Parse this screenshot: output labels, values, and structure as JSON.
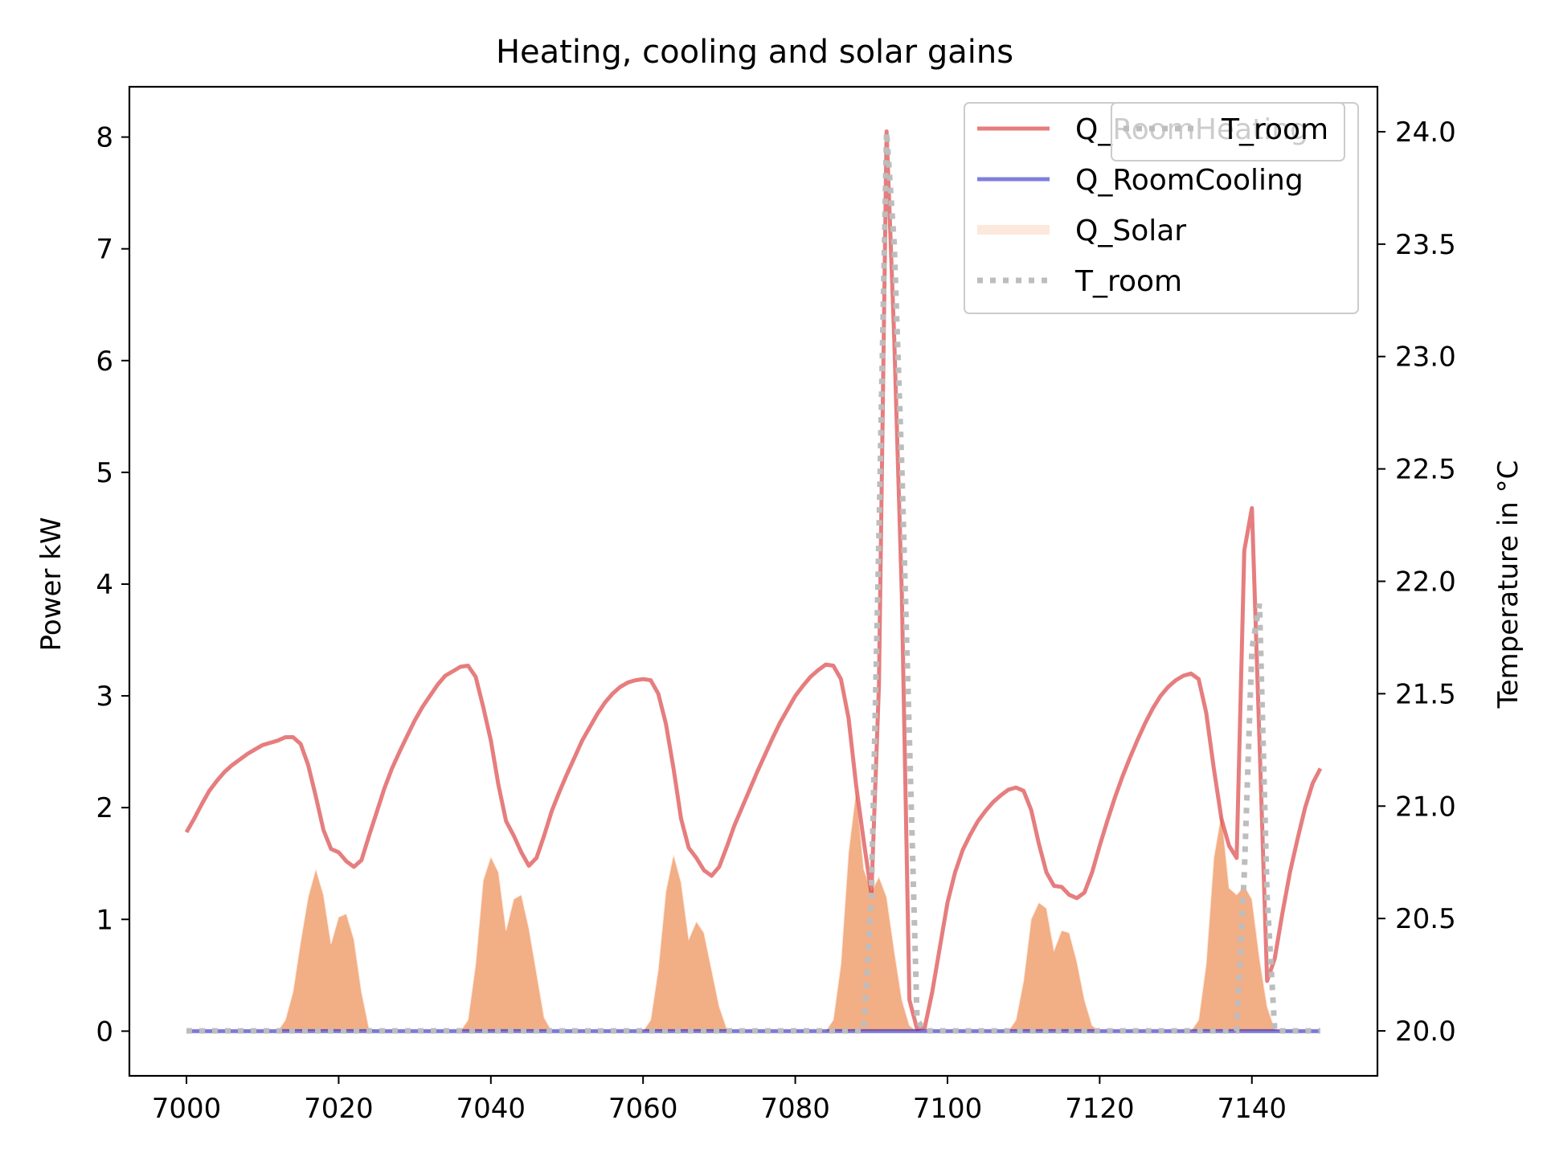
{
  "chart_data": {
    "type": "line",
    "title": "Heating, cooling and solar gains",
    "xlabel": "",
    "ylabel": "Power kW",
    "y2label": "Temperature in °C",
    "xlim": [
      6992.5,
      7156.5
    ],
    "ylim": [
      -0.4,
      8.45
    ],
    "y2lim": [
      19.8,
      24.2
    ],
    "x_ticks": [
      7000,
      7020,
      7040,
      7060,
      7080,
      7100,
      7120,
      7140
    ],
    "y_ticks": [
      0,
      1,
      2,
      3,
      4,
      5,
      6,
      7,
      8
    ],
    "y2_ticks": [
      20.0,
      20.5,
      21.0,
      21.5,
      22.0,
      22.5,
      23.0,
      23.5,
      24.0
    ],
    "y2_tick_labels": [
      "20.0",
      "20.5",
      "21.0",
      "21.5",
      "22.0",
      "22.5",
      "23.0",
      "23.5",
      "24.0"
    ],
    "grid": false,
    "series": [
      {
        "name": "Q_RoomHeating",
        "kind": "line",
        "axis": "left",
        "color": "#d62728",
        "points": [
          [
            7000,
            1.78
          ],
          [
            7001,
            1.9
          ],
          [
            7002,
            2.03
          ],
          [
            7003,
            2.15
          ],
          [
            7004,
            2.24
          ],
          [
            7005,
            2.32
          ],
          [
            7006,
            2.38
          ],
          [
            7007,
            2.43
          ],
          [
            7008,
            2.48
          ],
          [
            7009,
            2.52
          ],
          [
            7010,
            2.56
          ],
          [
            7011,
            2.58
          ],
          [
            7012,
            2.6
          ],
          [
            7013,
            2.63
          ],
          [
            7014,
            2.63
          ],
          [
            7015,
            2.57
          ],
          [
            7016,
            2.38
          ],
          [
            7017,
            2.1
          ],
          [
            7018,
            1.8
          ],
          [
            7019,
            1.63
          ],
          [
            7020,
            1.6
          ],
          [
            7021,
            1.52
          ],
          [
            7022,
            1.47
          ],
          [
            7023,
            1.53
          ],
          [
            7024,
            1.75
          ],
          [
            7025,
            1.96
          ],
          [
            7026,
            2.17
          ],
          [
            7027,
            2.35
          ],
          [
            7028,
            2.5
          ],
          [
            7029,
            2.64
          ],
          [
            7030,
            2.78
          ],
          [
            7031,
            2.9
          ],
          [
            7032,
            3.0
          ],
          [
            7033,
            3.1
          ],
          [
            7034,
            3.18
          ],
          [
            7035,
            3.22
          ],
          [
            7036,
            3.26
          ],
          [
            7037,
            3.27
          ],
          [
            7038,
            3.17
          ],
          [
            7039,
            2.9
          ],
          [
            7040,
            2.6
          ],
          [
            7041,
            2.2
          ],
          [
            7042,
            1.88
          ],
          [
            7043,
            1.75
          ],
          [
            7044,
            1.6
          ],
          [
            7045,
            1.48
          ],
          [
            7046,
            1.55
          ],
          [
            7047,
            1.75
          ],
          [
            7048,
            1.97
          ],
          [
            7049,
            2.14
          ],
          [
            7050,
            2.3
          ],
          [
            7051,
            2.45
          ],
          [
            7052,
            2.6
          ],
          [
            7053,
            2.72
          ],
          [
            7054,
            2.84
          ],
          [
            7055,
            2.94
          ],
          [
            7056,
            3.02
          ],
          [
            7057,
            3.08
          ],
          [
            7058,
            3.12
          ],
          [
            7059,
            3.14
          ],
          [
            7060,
            3.15
          ],
          [
            7061,
            3.14
          ],
          [
            7062,
            3.02
          ],
          [
            7063,
            2.75
          ],
          [
            7064,
            2.35
          ],
          [
            7065,
            1.9
          ],
          [
            7066,
            1.64
          ],
          [
            7067,
            1.55
          ],
          [
            7068,
            1.44
          ],
          [
            7069,
            1.39
          ],
          [
            7070,
            1.47
          ],
          [
            7071,
            1.65
          ],
          [
            7072,
            1.84
          ],
          [
            7073,
            2.0
          ],
          [
            7074,
            2.16
          ],
          [
            7075,
            2.32
          ],
          [
            7076,
            2.47
          ],
          [
            7077,
            2.62
          ],
          [
            7078,
            2.76
          ],
          [
            7079,
            2.88
          ],
          [
            7080,
            3.0
          ],
          [
            7081,
            3.09
          ],
          [
            7082,
            3.17
          ],
          [
            7083,
            3.23
          ],
          [
            7084,
            3.28
          ],
          [
            7085,
            3.27
          ],
          [
            7086,
            3.15
          ],
          [
            7087,
            2.8
          ],
          [
            7088,
            2.2
          ],
          [
            7089,
            1.7
          ],
          [
            7090,
            1.23
          ],
          [
            7091,
            3.1
          ],
          [
            7092,
            8.05
          ],
          [
            7093,
            6.2
          ],
          [
            7094,
            3.9
          ],
          [
            7095,
            0.28
          ],
          [
            7096,
            0.02
          ],
          [
            7097,
            0.03
          ],
          [
            7098,
            0.35
          ],
          [
            7099,
            0.75
          ],
          [
            7100,
            1.15
          ],
          [
            7101,
            1.42
          ],
          [
            7102,
            1.62
          ],
          [
            7103,
            1.76
          ],
          [
            7104,
            1.88
          ],
          [
            7105,
            1.97
          ],
          [
            7106,
            2.05
          ],
          [
            7107,
            2.11
          ],
          [
            7108,
            2.16
          ],
          [
            7109,
            2.18
          ],
          [
            7110,
            2.15
          ],
          [
            7111,
            1.98
          ],
          [
            7112,
            1.68
          ],
          [
            7113,
            1.42
          ],
          [
            7114,
            1.3
          ],
          [
            7115,
            1.29
          ],
          [
            7116,
            1.22
          ],
          [
            7117,
            1.19
          ],
          [
            7118,
            1.24
          ],
          [
            7119,
            1.42
          ],
          [
            7120,
            1.66
          ],
          [
            7121,
            1.88
          ],
          [
            7122,
            2.09
          ],
          [
            7123,
            2.28
          ],
          [
            7124,
            2.45
          ],
          [
            7125,
            2.61
          ],
          [
            7126,
            2.76
          ],
          [
            7127,
            2.89
          ],
          [
            7128,
            3.0
          ],
          [
            7129,
            3.08
          ],
          [
            7130,
            3.14
          ],
          [
            7131,
            3.18
          ],
          [
            7132,
            3.2
          ],
          [
            7133,
            3.15
          ],
          [
            7134,
            2.85
          ],
          [
            7135,
            2.35
          ],
          [
            7136,
            1.9
          ],
          [
            7137,
            1.66
          ],
          [
            7138,
            1.55
          ],
          [
            7139,
            4.3
          ],
          [
            7140,
            4.68
          ],
          [
            7141,
            2.6
          ],
          [
            7142,
            0.45
          ],
          [
            7143,
            0.65
          ],
          [
            7144,
            1.05
          ],
          [
            7145,
            1.42
          ],
          [
            7146,
            1.72
          ],
          [
            7147,
            2.0
          ],
          [
            7148,
            2.22
          ],
          [
            7149,
            2.35
          ]
        ]
      },
      {
        "name": "Q_RoomCooling",
        "kind": "line",
        "axis": "left",
        "color": "#0000bb",
        "points": [
          [
            7000,
            0.0
          ],
          [
            7149,
            0.0
          ]
        ]
      },
      {
        "name": "Q_Solar",
        "kind": "area",
        "axis": "left",
        "color": "#f0a070",
        "points": [
          [
            7000,
            0
          ],
          [
            7012,
            0
          ],
          [
            7013,
            0.1
          ],
          [
            7014,
            0.35
          ],
          [
            7015,
            0.8
          ],
          [
            7016,
            1.2
          ],
          [
            7017,
            1.45
          ],
          [
            7018,
            1.22
          ],
          [
            7019,
            0.78
          ],
          [
            7020,
            1.02
          ],
          [
            7021,
            1.05
          ],
          [
            7022,
            0.82
          ],
          [
            7023,
            0.35
          ],
          [
            7024,
            0.02
          ],
          [
            7025,
            0
          ],
          [
            7036,
            0
          ],
          [
            7037,
            0.1
          ],
          [
            7038,
            0.6
          ],
          [
            7039,
            1.35
          ],
          [
            7040,
            1.56
          ],
          [
            7041,
            1.42
          ],
          [
            7042,
            0.9
          ],
          [
            7043,
            1.18
          ],
          [
            7044,
            1.22
          ],
          [
            7045,
            0.92
          ],
          [
            7046,
            0.52
          ],
          [
            7047,
            0.12
          ],
          [
            7048,
            0
          ],
          [
            7060,
            0
          ],
          [
            7061,
            0.1
          ],
          [
            7062,
            0.55
          ],
          [
            7063,
            1.25
          ],
          [
            7064,
            1.58
          ],
          [
            7065,
            1.33
          ],
          [
            7066,
            0.82
          ],
          [
            7067,
            0.98
          ],
          [
            7068,
            0.88
          ],
          [
            7069,
            0.55
          ],
          [
            7070,
            0.22
          ],
          [
            7071,
            0.02
          ],
          [
            7072,
            0
          ],
          [
            7084,
            0
          ],
          [
            7085,
            0.1
          ],
          [
            7086,
            0.6
          ],
          [
            7087,
            1.6
          ],
          [
            7088,
            2.15
          ],
          [
            7089,
            1.45
          ],
          [
            7090,
            1.25
          ],
          [
            7091,
            1.38
          ],
          [
            7092,
            1.2
          ],
          [
            7093,
            0.72
          ],
          [
            7094,
            0.28
          ],
          [
            7095,
            0.05
          ],
          [
            7096,
            0
          ],
          [
            7108,
            0
          ],
          [
            7109,
            0.1
          ],
          [
            7110,
            0.45
          ],
          [
            7111,
            1.0
          ],
          [
            7112,
            1.15
          ],
          [
            7113,
            1.1
          ],
          [
            7114,
            0.72
          ],
          [
            7115,
            0.9
          ],
          [
            7116,
            0.88
          ],
          [
            7117,
            0.62
          ],
          [
            7118,
            0.28
          ],
          [
            7119,
            0.05
          ],
          [
            7120,
            0
          ],
          [
            7132,
            0
          ],
          [
            7133,
            0.1
          ],
          [
            7134,
            0.6
          ],
          [
            7135,
            1.55
          ],
          [
            7136,
            1.95
          ],
          [
            7137,
            1.28
          ],
          [
            7138,
            1.22
          ],
          [
            7139,
            1.3
          ],
          [
            7140,
            1.18
          ],
          [
            7141,
            0.65
          ],
          [
            7142,
            0.22
          ],
          [
            7143,
            0.02
          ],
          [
            7144,
            0
          ],
          [
            7149,
            0
          ]
        ]
      },
      {
        "name": "T_room",
        "kind": "dotted-line",
        "axis": "right",
        "color": "#bdbdbd",
        "points": [
          [
            7000,
            20.0
          ],
          [
            7089,
            20.0
          ],
          [
            7090,
            20.6
          ],
          [
            7091,
            22.2
          ],
          [
            7092,
            24.0
          ],
          [
            7093,
            23.5
          ],
          [
            7094,
            22.5
          ],
          [
            7095,
            21.3
          ],
          [
            7096,
            20.05
          ],
          [
            7097,
            20.0
          ],
          [
            7138,
            20.0
          ],
          [
            7139,
            20.7
          ],
          [
            7140,
            21.7
          ],
          [
            7141,
            21.9
          ],
          [
            7142,
            20.6
          ],
          [
            7143,
            20.0
          ],
          [
            7149,
            20.0
          ]
        ]
      }
    ],
    "legend": {
      "placement": "top-right",
      "entries": [
        "Q_RoomHeating",
        "Q_RoomCooling",
        "Q_Solar",
        "T_room"
      ]
    },
    "legend_secondary": {
      "placement": "top-right",
      "entries": [
        "T_room"
      ]
    }
  }
}
